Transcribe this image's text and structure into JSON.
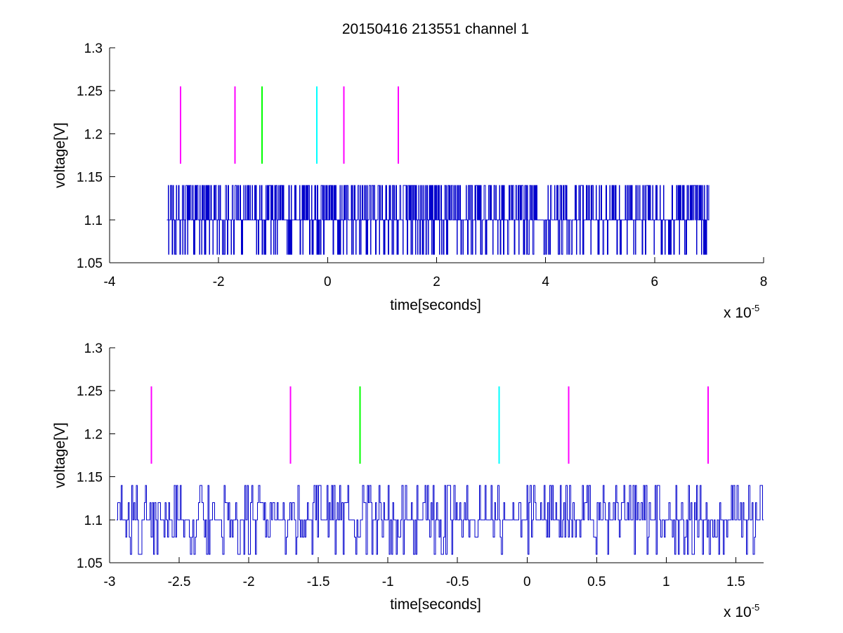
{
  "figure_title": "20150416 213551 channel 1",
  "chart_data": [
    {
      "type": "line",
      "xlabel": "time[seconds]",
      "ylabel": "voltage[V]",
      "x_exponent_label": "x 10",
      "x_exponent": "-5",
      "xlim": [
        -4,
        8
      ],
      "ylim": [
        1.05,
        1.3
      ],
      "x_ticks": [
        -4,
        -2,
        0,
        2,
        4,
        6,
        8
      ],
      "x_tick_labels": [
        "-4",
        "-2",
        "0",
        "2",
        "4",
        "6",
        "8"
      ],
      "y_ticks": [
        1.05,
        1.1,
        1.15,
        1.2,
        1.25,
        1.3
      ],
      "y_tick_labels": [
        "1.05",
        "1.1",
        "1.15",
        "1.2",
        "1.25",
        "1.3"
      ],
      "grid": false,
      "series": [
        {
          "color": "#0000cc",
          "x_range": [
            -2.95,
            7.0
          ],
          "levels": [
            1.06,
            1.1,
            1.14
          ],
          "baseline": 1.1,
          "approx_points": 1200
        }
      ],
      "markers": [
        {
          "x": -2.7,
          "y_range": [
            1.165,
            1.255
          ],
          "color": "#ff00ff"
        },
        {
          "x": -1.7,
          "y_range": [
            1.165,
            1.255
          ],
          "color": "#ff00ff"
        },
        {
          "x": -1.2,
          "y_range": [
            1.165,
            1.255
          ],
          "color": "#00ff00"
        },
        {
          "x": -0.2,
          "y_range": [
            1.165,
            1.255
          ],
          "color": "#00ffff"
        },
        {
          "x": 0.3,
          "y_range": [
            1.165,
            1.255
          ],
          "color": "#ff00ff"
        },
        {
          "x": 1.3,
          "y_range": [
            1.165,
            1.255
          ],
          "color": "#ff00ff"
        }
      ]
    },
    {
      "type": "line",
      "xlabel": "time[seconds]",
      "ylabel": "voltage[V]",
      "x_exponent_label": "x 10",
      "x_exponent": "-5",
      "xlim": [
        -3.0,
        1.7
      ],
      "ylim": [
        1.05,
        1.3
      ],
      "x_ticks": [
        -3,
        -2.5,
        -2,
        -1.5,
        -1,
        -0.5,
        0,
        0.5,
        1,
        1.5
      ],
      "x_tick_labels": [
        "-3",
        "-2.5",
        "-2",
        "-1.5",
        "-1",
        "-0.5",
        "0",
        "0.5",
        "1",
        "1.5"
      ],
      "y_ticks": [
        1.05,
        1.1,
        1.15,
        1.2,
        1.25,
        1.3
      ],
      "y_tick_labels": [
        "1.05",
        "1.1",
        "1.15",
        "1.2",
        "1.25",
        "1.3"
      ],
      "grid": false,
      "series": [
        {
          "color": "#0000cc",
          "x_range": [
            -2.95,
            1.7
          ],
          "levels": [
            1.06,
            1.08,
            1.1,
            1.12,
            1.14
          ],
          "baseline": 1.1,
          "approx_points": 560
        }
      ],
      "markers": [
        {
          "x": -2.7,
          "y_range": [
            1.165,
            1.255
          ],
          "color": "#ff00ff"
        },
        {
          "x": -1.7,
          "y_range": [
            1.165,
            1.255
          ],
          "color": "#ff00ff"
        },
        {
          "x": -1.2,
          "y_range": [
            1.165,
            1.255
          ],
          "color": "#00ff00"
        },
        {
          "x": -0.2,
          "y_range": [
            1.165,
            1.255
          ],
          "color": "#00ffff"
        },
        {
          "x": 0.3,
          "y_range": [
            1.165,
            1.255
          ],
          "color": "#ff00ff"
        },
        {
          "x": 1.3,
          "y_range": [
            1.165,
            1.255
          ],
          "color": "#ff00ff"
        }
      ]
    }
  ]
}
